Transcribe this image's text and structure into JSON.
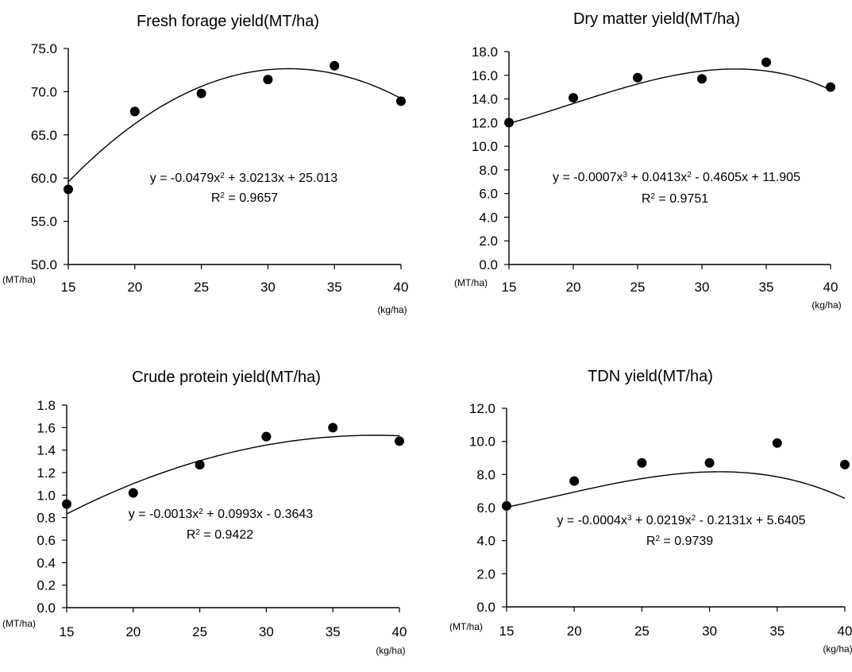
{
  "chart_data": [
    {
      "type": "scatter",
      "title": "Fresh forage yield(MT/ha)",
      "x": [
        15,
        20,
        25,
        30,
        35,
        40
      ],
      "xticks": [
        "15",
        "20",
        "25",
        "30",
        "35",
        "40"
      ],
      "xunit": "(kg/ha)",
      "yunit": "(MT/ha)",
      "yticks": [
        "50.0",
        "55.0",
        "60.0",
        "65.0",
        "70.0",
        "75.0"
      ],
      "ylim": [
        50,
        75
      ],
      "series": [
        {
          "values": [
            58.7,
            67.7,
            69.8,
            71.4,
            73.0,
            68.9
          ]
        }
      ],
      "trendline": {
        "degree": 2,
        "coefficients": [
          -0.0479,
          3.0213,
          25.013
        ],
        "equation": "y = -0.0479x",
        "equation_exp": "2",
        "equation_rest": " + 3.0213x + 25.013",
        "r2_label": "R",
        "r2_exp": "2",
        "r2_value": " = 0.9657"
      }
    },
    {
      "type": "scatter",
      "title": "Dry matter yield(MT/ha)",
      "x": [
        15,
        20,
        25,
        30,
        35,
        40
      ],
      "xticks": [
        "15",
        "20",
        "25",
        "30",
        "35",
        "40"
      ],
      "xunit": "(kg/ha)",
      "yunit": "(MT/ha)",
      "yticks": [
        "0.0",
        "2.0",
        "4.0",
        "6.0",
        "8.0",
        "10.0",
        "12.0",
        "14.0",
        "16.0",
        "18.0"
      ],
      "ylim": [
        0,
        18
      ],
      "series": [
        {
          "values": [
            12.0,
            14.1,
            15.8,
            15.7,
            17.1,
            15.0
          ]
        }
      ],
      "trendline": {
        "degree": 3,
        "coefficients": [
          -0.0007,
          0.0413,
          -0.4605,
          11.905
        ],
        "equation": "y = -0.0007x",
        "equation_exp": "3",
        "equation_rest": " + 0.0413x",
        "equation_exp2": "2",
        "equation_rest2": " - 0.4605x + 11.905",
        "r2_label": "R",
        "r2_exp": "2",
        "r2_value": " = 0.9751"
      }
    },
    {
      "type": "scatter",
      "title": "Crude protein yield(MT/ha)",
      "x": [
        15,
        20,
        25,
        30,
        35,
        40
      ],
      "xticks": [
        "15",
        "20",
        "25",
        "30",
        "35",
        "40"
      ],
      "xunit": "(kg/ha)",
      "yunit": "(MT/ha)",
      "yticks": [
        "0.0",
        "0.2",
        "0.4",
        "0.6",
        "0.8",
        "1.0",
        "1.2",
        "1.4",
        "1.6",
        "1.8"
      ],
      "ylim": [
        0,
        1.8
      ],
      "series": [
        {
          "values": [
            0.92,
            1.02,
            1.27,
            1.52,
            1.6,
            1.48
          ]
        }
      ],
      "trendline": {
        "degree": 2,
        "coefficients": [
          -0.0013,
          0.0993,
          -0.3643
        ],
        "equation": "y = -0.0013x",
        "equation_exp": "2",
        "equation_rest": " + 0.0993x - 0.3643",
        "r2_label": "R",
        "r2_exp": "2",
        "r2_value": " = 0.9422"
      }
    },
    {
      "type": "scatter",
      "title": "TDN yield(MT/ha)",
      "x": [
        15,
        20,
        25,
        30,
        35,
        40
      ],
      "xticks": [
        "15",
        "20",
        "25",
        "30",
        "35",
        "40"
      ],
      "xunit": "(kg/ha)",
      "yunit": "(MT/ha)",
      "yticks": [
        "0.0",
        "2.0",
        "4.0",
        "6.0",
        "8.0",
        "10.0",
        "12.0"
      ],
      "ylim": [
        0,
        12
      ],
      "series": [
        {
          "values": [
            6.1,
            7.6,
            8.7,
            8.7,
            9.9,
            8.6
          ]
        }
      ],
      "trendline": {
        "degree": 3,
        "coefficients": [
          -0.0004,
          0.0219,
          -0.2131,
          5.6405
        ],
        "equation": "y = -0.0004x",
        "equation_exp": "3",
        "equation_rest": " + 0.0219x",
        "equation_exp2": "2",
        "equation_rest2": " - 0.2131x + 5.6405",
        "r2_label": "R",
        "r2_exp": "2",
        "r2_value": " = 0.9739"
      }
    }
  ]
}
